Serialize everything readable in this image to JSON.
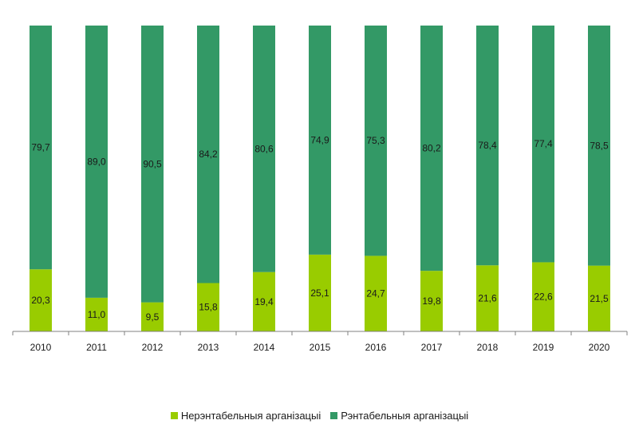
{
  "chart_data": {
    "type": "bar",
    "stacked": true,
    "categories": [
      "2010",
      "2011",
      "2012",
      "2013",
      "2014",
      "2015",
      "2016",
      "2017",
      "2018",
      "2019",
      "2020"
    ],
    "series": [
      {
        "name": "Нерэнтабельныя арганізацыі",
        "color": "#99cc00",
        "values": [
          20.3,
          11.0,
          9.5,
          15.8,
          19.4,
          25.1,
          24.7,
          19.8,
          21.6,
          22.6,
          21.5
        ],
        "labels": [
          "20,3",
          "11,0",
          "9,5",
          "15,8",
          "19,4",
          "25,1",
          "24,7",
          "19,8",
          "21,6",
          "22,6",
          "21,5"
        ]
      },
      {
        "name": "Рэнтабельныя арганізацыі",
        "color": "#339966",
        "values": [
          79.7,
          89.0,
          90.5,
          84.2,
          80.6,
          74.9,
          75.3,
          80.2,
          78.4,
          77.4,
          78.5
        ],
        "labels": [
          "79,7",
          "89,0",
          "90,5",
          "84,2",
          "80,6",
          "74,9",
          "75,3",
          "80,2",
          "78,4",
          "77,4",
          "78,5"
        ]
      }
    ],
    "ylim": [
      0,
      100
    ],
    "grid": false,
    "legend_position": "bottom"
  }
}
